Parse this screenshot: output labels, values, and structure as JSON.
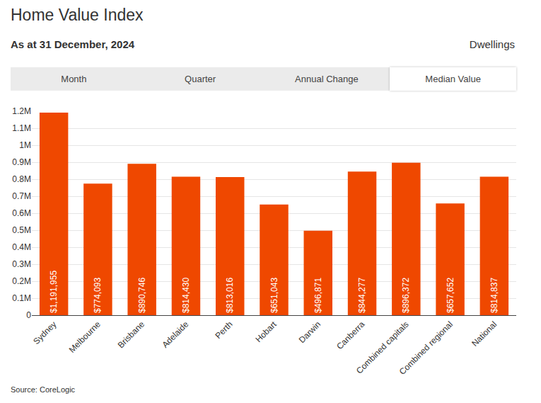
{
  "chart_data": {
    "type": "bar",
    "title": "Home Value Index",
    "subtitle": "As at 31 December, 2024",
    "categories": [
      "Sydney",
      "Melbourne",
      "Brisbane",
      "Adelaide",
      "Perth",
      "Hobart",
      "Darwin",
      "Canberra",
      "Combined capitals",
      "Combined regional",
      "National"
    ],
    "values": [
      1191955,
      774093,
      890746,
      814430,
      813016,
      651043,
      496871,
      844277,
      896372,
      657652,
      814837
    ],
    "value_labels": [
      "$1,191,955",
      "$774,093",
      "$890,746",
      "$814,430",
      "$813,016",
      "$651,043",
      "$496,871",
      "$844,277",
      "$896,372",
      "$657,652",
      "$814,837"
    ],
    "data_labels": true,
    "color": "#ef4800",
    "grid": true,
    "ylim": [
      0,
      1200000
    ],
    "yticks": [
      0,
      {
        "value": 100000,
        "label": "0.1M"
      },
      {
        "value": 200000,
        "label": "0.2M"
      },
      {
        "value": 300000,
        "label": "0.3M"
      },
      {
        "value": 400000,
        "label": "0.4M"
      },
      {
        "value": 500000,
        "label": "0.5M"
      },
      {
        "value": 600000,
        "label": "0.6M"
      },
      {
        "value": 700000,
        "label": "0.7M"
      },
      {
        "value": 800000,
        "label": "0.8M"
      },
      {
        "value": 900000,
        "label": "0.9M"
      },
      {
        "value": 1000000,
        "label": "1M"
      },
      {
        "value": 1100000,
        "label": "1.1M"
      },
      {
        "value": 1200000,
        "label": "1.2M"
      }
    ]
  },
  "page": {
    "note": "Dwellings",
    "tabs": [
      "Month",
      "Quarter",
      "Annual Change",
      "Median Value"
    ],
    "active_tab": "Median Value",
    "source": "Source: CoreLogic"
  }
}
